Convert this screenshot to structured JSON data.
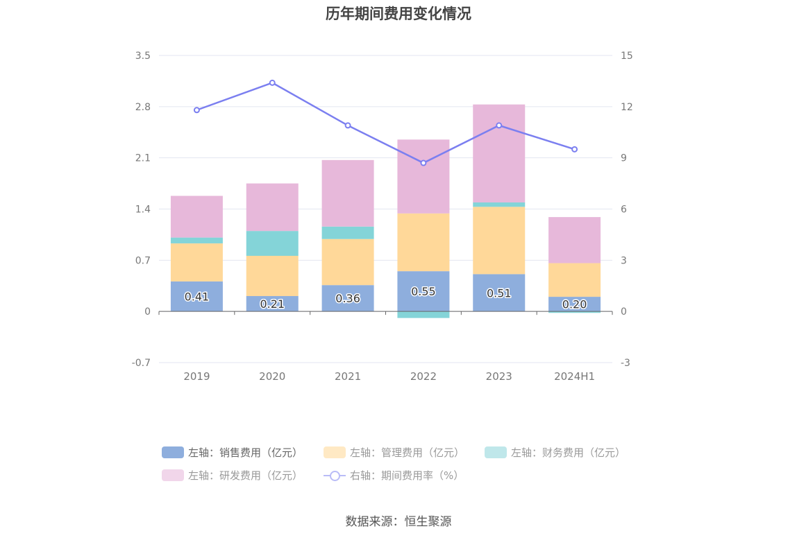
{
  "title": "历年期间费用变化情况",
  "source": "数据来源：恒生聚源",
  "colors": {
    "sales": "#8eaedd",
    "admin": "#ffd899",
    "finance": "#84d4d8",
    "rnd": "#e7b8da",
    "rate": "#7b7ff0",
    "grid": "#e3e6f0",
    "axis": "#666666"
  },
  "legend": [
    {
      "label": "左轴：销售费用（亿元）",
      "color": "#8eaedd",
      "type": "box",
      "inactive": false
    },
    {
      "label": "左轴：管理费用（亿元）",
      "color": "#ffe9c4",
      "type": "box",
      "inactive": true
    },
    {
      "label": "左轴：财务费用（亿元）",
      "color": "#bfe7ea",
      "type": "box",
      "inactive": true
    },
    {
      "label": "左轴：研发费用（亿元）",
      "color": "#f1d6ea",
      "type": "box",
      "inactive": true
    },
    {
      "label": "右轴：期间费用率（%）",
      "color": "#b9bcf7",
      "type": "line",
      "inactive": true
    }
  ],
  "chart_data": {
    "type": "bar",
    "title": "历年期间费用变化情况",
    "categories": [
      "2019",
      "2020",
      "2021",
      "2022",
      "2023",
      "2024H1"
    ],
    "stacked": true,
    "left_axis": {
      "min": -0.7,
      "max": 3.5,
      "ticks": [
        "-0.7",
        "0",
        "0.7",
        "1.4",
        "2.1",
        "2.8",
        "3.5"
      ]
    },
    "right_axis": {
      "min": -3,
      "max": 15,
      "ticks": [
        "-3",
        "0",
        "3",
        "6",
        "9",
        "12",
        "15"
      ]
    },
    "series": [
      {
        "name": "左轴：销售费用（亿元）",
        "axis": "left",
        "type": "bar",
        "values": [
          0.41,
          0.21,
          0.36,
          0.55,
          0.51,
          0.2
        ],
        "labels": [
          "0.41",
          "0.21",
          "0.36",
          "0.55",
          "0.51",
          "0.20"
        ]
      },
      {
        "name": "左轴：管理费用（亿元）",
        "axis": "left",
        "type": "bar",
        "values": [
          0.52,
          0.55,
          0.63,
          0.79,
          0.92,
          0.46
        ]
      },
      {
        "name": "左轴：财务费用（亿元）",
        "axis": "left",
        "type": "bar",
        "values": [
          0.08,
          0.34,
          0.17,
          -0.09,
          0.06,
          -0.02
        ]
      },
      {
        "name": "左轴：研发费用（亿元）",
        "axis": "left",
        "type": "bar",
        "values": [
          0.57,
          0.65,
          0.91,
          1.01,
          1.34,
          0.63
        ]
      },
      {
        "name": "右轴：期间费用率（%）",
        "axis": "right",
        "type": "line",
        "values": [
          11.8,
          13.4,
          10.9,
          8.7,
          10.9,
          9.5
        ]
      }
    ],
    "grid": true
  }
}
